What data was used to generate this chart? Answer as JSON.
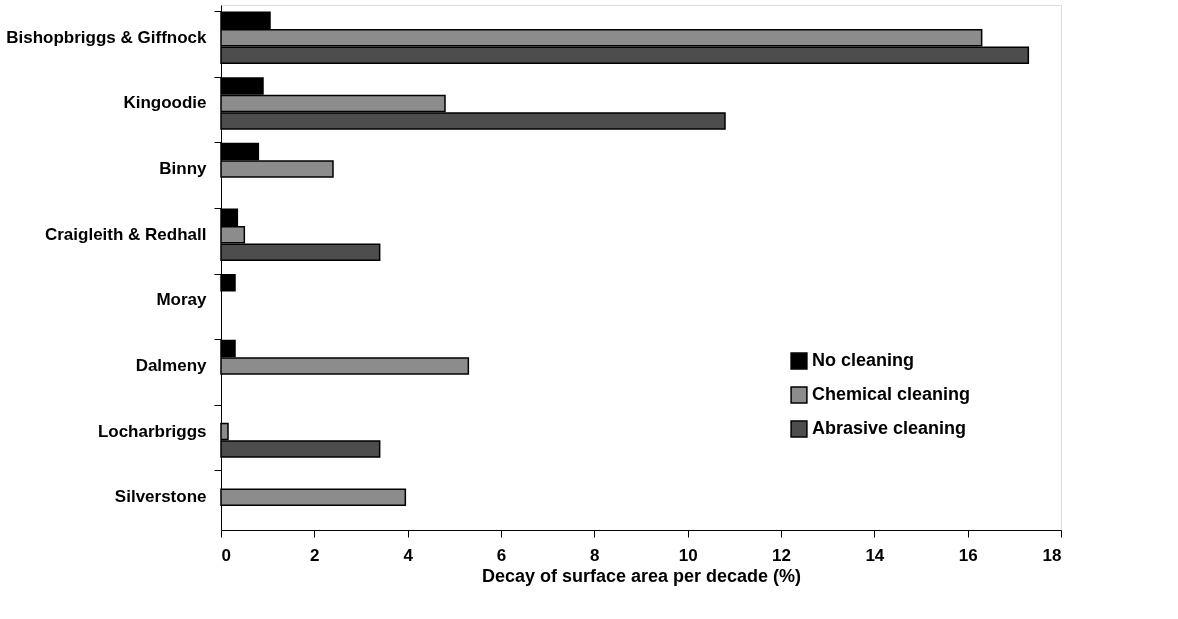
{
  "chart_data": {
    "type": "bar",
    "orientation": "horizontal",
    "xlabel": "Decay of surface area per decade (%)",
    "categories": [
      "Bishopbriggs & Giffnock",
      "Kingoodie",
      "Binny",
      "Craigleith & Redhall",
      "Moray",
      "Dalmeny",
      "Locharbriggs",
      "Silverstone"
    ],
    "series": [
      {
        "name": "No cleaning",
        "color": "#000000",
        "values": [
          1.05,
          0.9,
          0.8,
          0.35,
          0.3,
          0.3,
          null,
          null
        ]
      },
      {
        "name": "Chemical cleaning",
        "color": "#8c8c8c",
        "values": [
          16.3,
          4.8,
          2.4,
          0.5,
          null,
          5.3,
          0.15,
          3.95
        ]
      },
      {
        "name": "Abrasive cleaning",
        "color": "#4d4d4d",
        "values": [
          17.3,
          10.8,
          null,
          3.4,
          null,
          null,
          3.4,
          null
        ]
      }
    ],
    "xlim": [
      0,
      18
    ],
    "xticks": [
      0,
      2,
      4,
      6,
      8,
      10,
      12,
      14,
      16,
      18
    ],
    "grid": false,
    "legend": "bottom right"
  }
}
